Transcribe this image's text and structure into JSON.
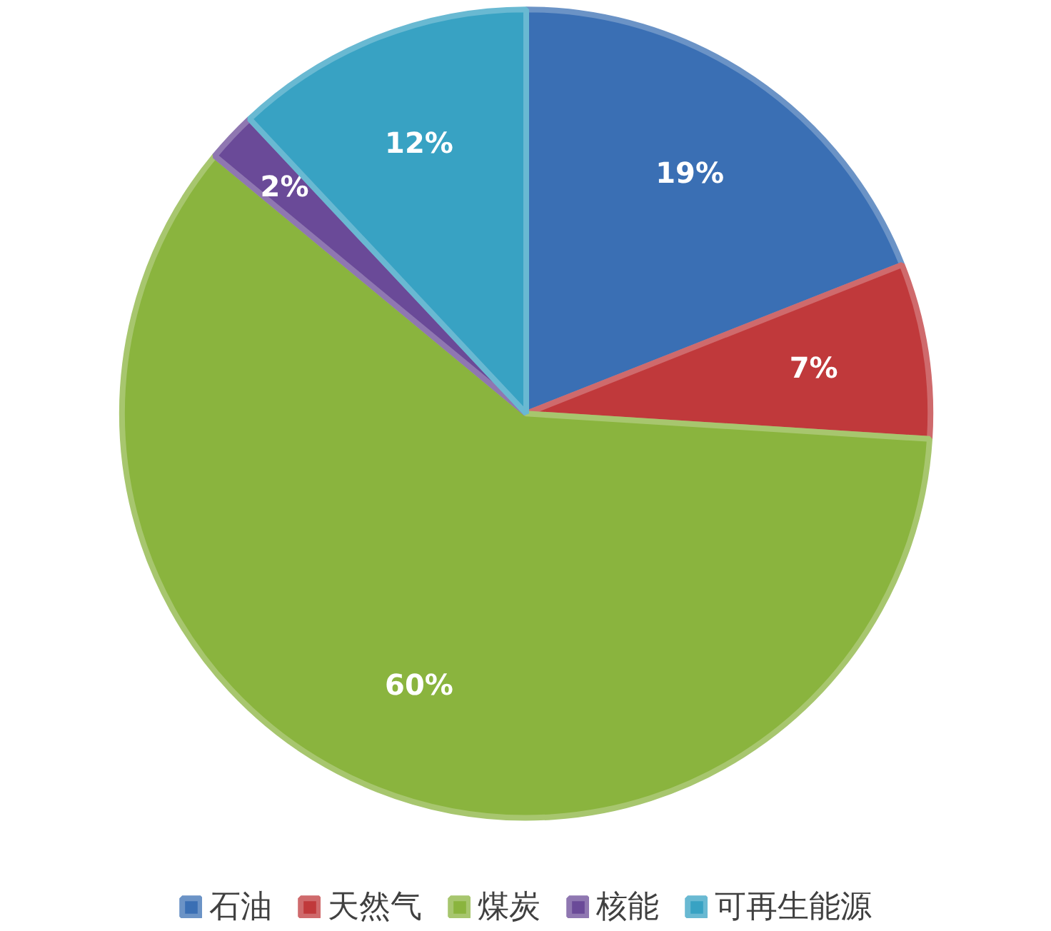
{
  "chart_data": {
    "type": "pie",
    "categories": [
      "石油",
      "天然气",
      "煤炭",
      "核能",
      "可再生能源"
    ],
    "values": [
      19,
      7,
      60,
      2,
      12
    ],
    "colors": [
      "#3a6fb4",
      "#c0393b",
      "#8ab43e",
      "#6a4a98",
      "#38a2c3"
    ],
    "value_labels": [
      "19%",
      "7%",
      "60%",
      "2%",
      "12%"
    ],
    "legend": "bottom"
  }
}
